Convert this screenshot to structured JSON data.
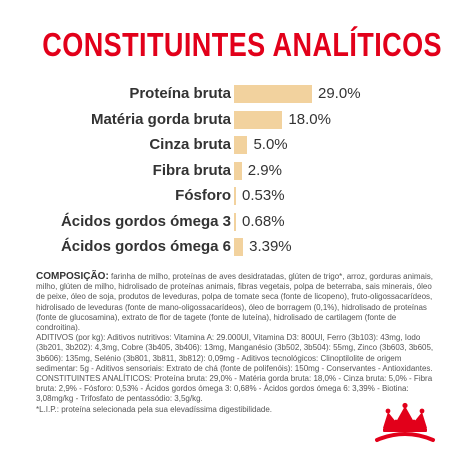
{
  "title": "CONSTITUINTES ANALÍTICOS",
  "chart_data": {
    "type": "bar",
    "orientation": "horizontal",
    "categories": [
      "Proteína bruta",
      "Matéria gorda bruta",
      "Cinza bruta",
      "Fibra bruta",
      "Fósforo",
      "Ácidos gordos ómega 3",
      "Ácidos gordos ómega 6"
    ],
    "values": [
      29.0,
      18.0,
      5.0,
      2.9,
      0.53,
      0.68,
      3.39
    ],
    "value_labels": [
      "29.0%",
      "18.0%",
      "5.0%",
      "2.9%",
      "0.53%",
      "0.68%",
      "3.39%"
    ],
    "bar_color": "#f2d29e",
    "xlim": [
      0,
      29.0
    ]
  },
  "composition": {
    "heading": "COMPOSIÇÃO:",
    "p1": " farinha de milho, proteínas de aves desidratadas, glúten de trigo*, arroz, gorduras animais, milho, glúten de milho, hidrolisado de proteínas animais, fibras vegetais, polpa de beterraba, sais minerais, óleo de peixe, óleo de soja, produtos de leveduras, polpa de tomate seca (fonte de licopeno), fruto-oligossacarídeos, hidrolisado de leveduras (fonte de mano-oligossacarídeos), óleo de borragem (0,1%), hidrolisado de proteínas (fonte de glucosamina), extrato de flor de tagete (fonte de luteína), hidrolisado de cartilagem (fonte de condroitina).",
    "p2": "ADITIVOS (por kg): Aditivos nutritivos: Vitamina A: 29.000UI, Vitamina D3: 800UI, Ferro (3b103): 43mg, Iodo (3b201, 3b202): 4,3mg, Cobre (3b405, 3b406): 13mg, Manganésio (3b502, 3b504): 55mg, Zinco (3b603, 3b605, 3b606): 135mg, Selénio (3b801, 3b811, 3b812): 0,09mg - Aditivos tecnológicos: Clinoptilolite de origem sedimentar: 5g - Aditivos sensoriais: Extrato de chá (fonte de polifenóis): 150mg - Conservantes - Antioxidantes.",
    "p3": "CONSTITUINTES ANALÍTICOS: Proteína bruta: 29,0% - Matéria gorda bruta: 18,0% - Cinza bruta: 5,0% - Fibra bruta: 2,9% - Fósforo: 0,53% - Ácidos gordos ómega 3: 0,68% - Ácidos gordos ómega 6: 3,39% - Biotina: 3,08mg/kg - Trifosfato de pentassódio: 3,5g/kg.",
    "p4": "*L.I.P.: proteína selecionada pela sua elevadíssima digestibilidade."
  },
  "logo": {
    "icon": "royal-canin-crown-logo",
    "color": "#e2001a"
  }
}
